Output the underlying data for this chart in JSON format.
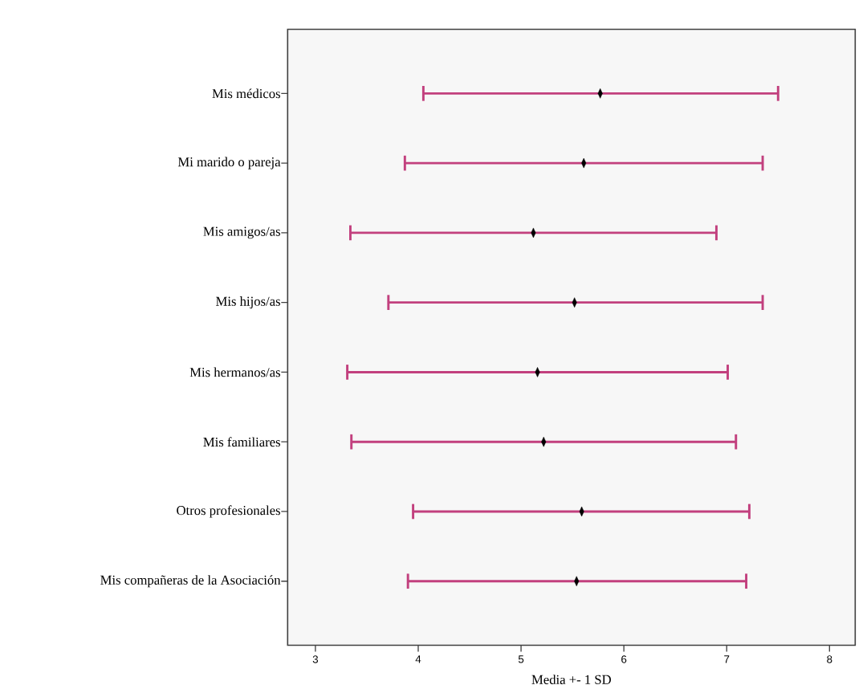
{
  "chart_data": {
    "type": "scatter",
    "orientation": "horizontal",
    "categories": [
      "Mis médicos",
      "Mi marido o pareja",
      "Mis  amigos/as",
      "Mis  hijos/as",
      "Mis  hermanos/as",
      "Mis  familiares",
      "Otros profesionales",
      "Mis compañeras de la Asociación"
    ],
    "values": [
      5.77,
      5.61,
      5.12,
      5.52,
      5.16,
      5.22,
      5.59,
      5.54
    ],
    "errors": [
      [
        4.05,
        7.5
      ],
      [
        3.87,
        7.35
      ],
      [
        3.34,
        6.9
      ],
      [
        3.71,
        7.35
      ],
      [
        3.31,
        7.01
      ],
      [
        3.35,
        7.09
      ],
      [
        3.95,
        7.22
      ],
      [
        3.9,
        7.19
      ]
    ],
    "color": "#000000",
    "marker": "diamond",
    "xlabel": "Media +- 1 SD",
    "xlim": [
      2.73,
      8.25
    ],
    "xticks": [
      3,
      4,
      5,
      6,
      7,
      8
    ]
  }
}
